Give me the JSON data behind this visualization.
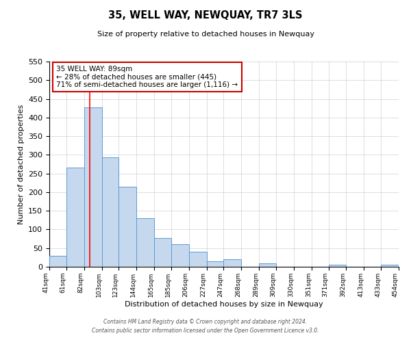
{
  "title": "35, WELL WAY, NEWQUAY, TR7 3LS",
  "subtitle": "Size of property relative to detached houses in Newquay",
  "xlabel": "Distribution of detached houses by size in Newquay",
  "ylabel": "Number of detached properties",
  "bar_left_edges": [
    41,
    61,
    82,
    103,
    123,
    144,
    165,
    185,
    206,
    227,
    247,
    268,
    289,
    309,
    330,
    351,
    371,
    392,
    413,
    433
  ],
  "bar_widths": [
    20,
    21,
    21,
    20,
    21,
    21,
    20,
    21,
    21,
    20,
    21,
    21,
    20,
    21,
    21,
    20,
    21,
    21,
    20,
    21
  ],
  "bar_heights": [
    30,
    265,
    427,
    293,
    215,
    130,
    77,
    60,
    40,
    15,
    20,
    0,
    10,
    0,
    0,
    0,
    5,
    0,
    0,
    5
  ],
  "bar_color": "#c5d8ed",
  "bar_edge_color": "#5b9bd5",
  "x_tick_labels": [
    "41sqm",
    "61sqm",
    "82sqm",
    "103sqm",
    "123sqm",
    "144sqm",
    "165sqm",
    "185sqm",
    "206sqm",
    "227sqm",
    "247sqm",
    "268sqm",
    "289sqm",
    "309sqm",
    "330sqm",
    "351sqm",
    "371sqm",
    "392sqm",
    "413sqm",
    "433sqm",
    "454sqm"
  ],
  "ylim": [
    0,
    550
  ],
  "yticks": [
    0,
    50,
    100,
    150,
    200,
    250,
    300,
    350,
    400,
    450,
    500,
    550
  ],
  "property_line_x": 89,
  "annotation_title": "35 WELL WAY: 89sqm",
  "annotation_line1": "← 28% of detached houses are smaller (445)",
  "annotation_line2": "71% of semi-detached houses are larger (1,116) →",
  "annotation_box_color": "#ffffff",
  "annotation_box_edge_color": "#cc0000",
  "grid_color": "#d0d0d0",
  "background_color": "#ffffff",
  "footer_line1": "Contains HM Land Registry data © Crown copyright and database right 2024.",
  "footer_line2": "Contains public sector information licensed under the Open Government Licence v3.0."
}
